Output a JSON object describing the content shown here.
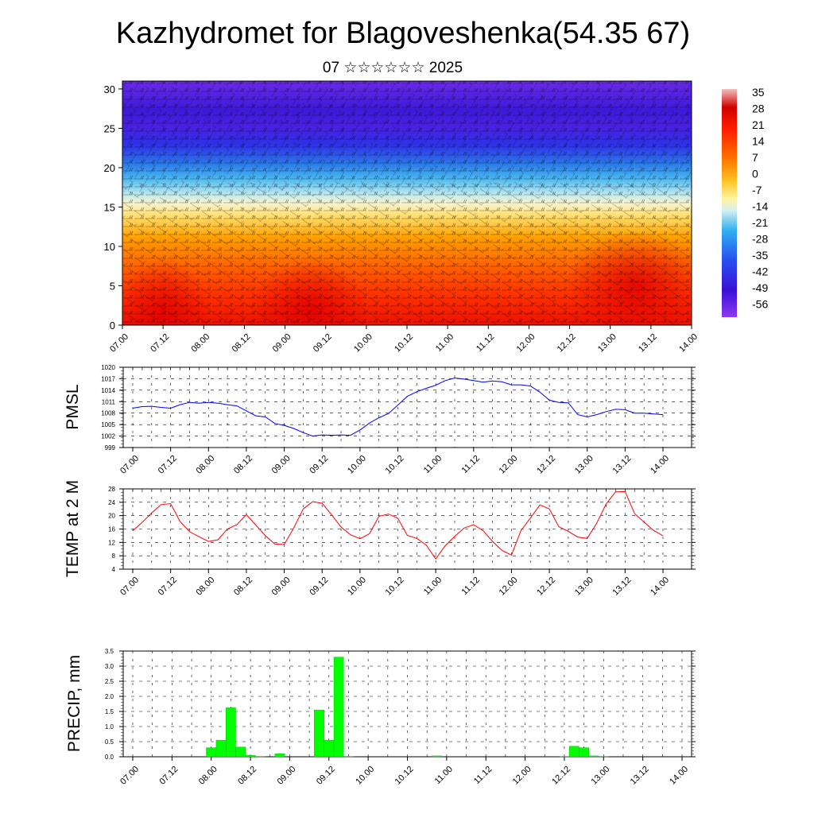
{
  "title": "Kazhydromet for Blagoveshenka(54.35 67)",
  "subtitle": "07 ☆☆☆☆☆☆ 2025",
  "chart_data": [
    {
      "type": "heatmap",
      "id": "upper-air",
      "xlabel": "",
      "ylabel": "",
      "x_ticklabels": [
        "07.00",
        "07.12",
        "08.00",
        "08.12",
        "09.00",
        "09.12",
        "10.00",
        "10.12",
        "11.00",
        "11.12",
        "12.00",
        "12.12",
        "13.00",
        "13.12",
        "14.00"
      ],
      "y_ticks": [
        0,
        5,
        10,
        15,
        20,
        25,
        30
      ],
      "ylim": [
        0,
        31
      ],
      "colorbar": {
        "labels": [
          "35",
          "28",
          "21",
          "14",
          "7",
          "0",
          "-7",
          "-14",
          "-21",
          "-28",
          "-35",
          "-42",
          "-49",
          "-56"
        ],
        "range": [
          -60,
          38
        ]
      },
      "vectors": "wind barbs overlay",
      "grid": false
    },
    {
      "type": "line",
      "id": "pmsl",
      "ylabel": "PMSL",
      "color": "#0000ff",
      "yticks": [
        999,
        1002,
        1005,
        1008,
        1011,
        1014,
        1017,
        1020
      ],
      "ylim": [
        999,
        1020
      ],
      "x_ticklabels": [
        "07.00",
        "07.12",
        "08.00",
        "08.12",
        "09.00",
        "09.12",
        "10.00",
        "10.12",
        "11.00",
        "11.12",
        "12.00",
        "12.12",
        "13.00",
        "13.12",
        "14.00"
      ],
      "x": [
        0,
        3,
        6,
        9,
        12,
        15,
        18,
        21,
        24,
        27,
        30,
        33,
        36,
        39,
        42,
        45,
        48,
        51,
        54,
        57,
        60,
        63,
        66,
        69,
        72,
        75,
        78,
        81,
        84,
        87,
        90,
        93,
        96,
        99,
        102,
        105,
        108,
        111,
        114,
        117,
        120,
        123,
        126,
        129,
        132,
        135,
        138,
        141,
        144,
        147,
        150,
        153,
        156,
        159,
        162,
        165,
        168
      ],
      "values": [
        1009.3,
        1009.7,
        1009.8,
        1009.5,
        1009.3,
        1010.2,
        1010.8,
        1010.6,
        1010.8,
        1010.6,
        1010.2,
        1009.9,
        1008.6,
        1007.3,
        1007.0,
        1005.3,
        1004.8,
        1004.0,
        1002.9,
        1002.0,
        1002.3,
        1002.2,
        1002.3,
        1002.2,
        1003.6,
        1005.4,
        1006.8,
        1007.9,
        1010.1,
        1012.4,
        1013.6,
        1014.5,
        1015.3,
        1016.5,
        1017.2,
        1016.9,
        1016.5,
        1016.1,
        1016.4,
        1016.2,
        1015.4,
        1015.4,
        1015.1,
        1013.5,
        1011.4,
        1010.8,
        1010.7,
        1007.6,
        1007.0,
        1007.6,
        1008.4,
        1009.0,
        1008.9,
        1008.0,
        1008.0,
        1007.8,
        1007.6
      ]
    },
    {
      "type": "line",
      "id": "temp2m",
      "ylabel": "TEMP at 2 M",
      "color": "#ff0000",
      "yticks": [
        4,
        8,
        12,
        16,
        20,
        24,
        28
      ],
      "ylim": [
        4,
        28
      ],
      "x_ticklabels": [
        "07.00",
        "07.12",
        "08.00",
        "08.12",
        "09.00",
        "09.12",
        "10.00",
        "10.12",
        "11.00",
        "11.12",
        "12.00",
        "12.12",
        "13.00",
        "13.12",
        "14.00"
      ],
      "x": [
        0,
        3,
        6,
        9,
        12,
        15,
        18,
        21,
        24,
        27,
        30,
        33,
        36,
        39,
        42,
        45,
        48,
        51,
        54,
        57,
        60,
        63,
        66,
        69,
        72,
        75,
        78,
        81,
        84,
        87,
        90,
        93,
        96,
        99,
        102,
        105,
        108,
        111,
        114,
        117,
        120,
        123,
        126,
        129,
        132,
        135,
        138,
        141,
        144,
        147,
        150,
        153,
        156,
        159,
        162,
        165,
        168
      ],
      "values": [
        15.5,
        18.0,
        20.8,
        23.3,
        23.6,
        18.2,
        15.2,
        13.7,
        12.3,
        12.8,
        16.0,
        17.3,
        20.3,
        17.2,
        14.0,
        11.5,
        11.4,
        16.3,
        22.0,
        24.2,
        23.7,
        20.3,
        16.6,
        14.3,
        13.1,
        14.6,
        19.8,
        20.5,
        19.2,
        14.1,
        13.2,
        11.2,
        7.1,
        11.0,
        13.8,
        16.3,
        17.3,
        15.5,
        12.3,
        9.6,
        8.2,
        15.5,
        19.3,
        23.2,
        22.0,
        16.7,
        15.3,
        13.6,
        13.2,
        17.7,
        23.5,
        27.1,
        27.2,
        20.6,
        18.1,
        15.6,
        14.0
      ]
    },
    {
      "type": "bar",
      "id": "precip",
      "ylabel": "PRECIP, mm",
      "color": "#00ff00",
      "yticks": [
        "0.0",
        "0.5",
        "1.0",
        "1.5",
        "2.0",
        "2.5",
        "3.0",
        "3.5"
      ],
      "ylim": [
        0,
        3.5
      ],
      "x_ticklabels": [
        "07.00",
        "07.12",
        "08.00",
        "08.12",
        "09.00",
        "09.12",
        "10.00",
        "10.12",
        "11.00",
        "11.12",
        "12.00",
        "12.12",
        "13.00",
        "13.12",
        "14.00"
      ],
      "x": [
        24,
        27,
        30,
        33,
        36,
        39,
        45,
        57,
        60,
        63,
        66,
        93,
        132,
        135,
        138,
        141,
        144
      ],
      "values": [
        0.3,
        0.55,
        1.62,
        0.32,
        0.05,
        0.01,
        0.1,
        1.55,
        0.55,
        3.3,
        0.01,
        0.03,
        0.01,
        0.35,
        0.3,
        0.03,
        0.01
      ]
    }
  ]
}
